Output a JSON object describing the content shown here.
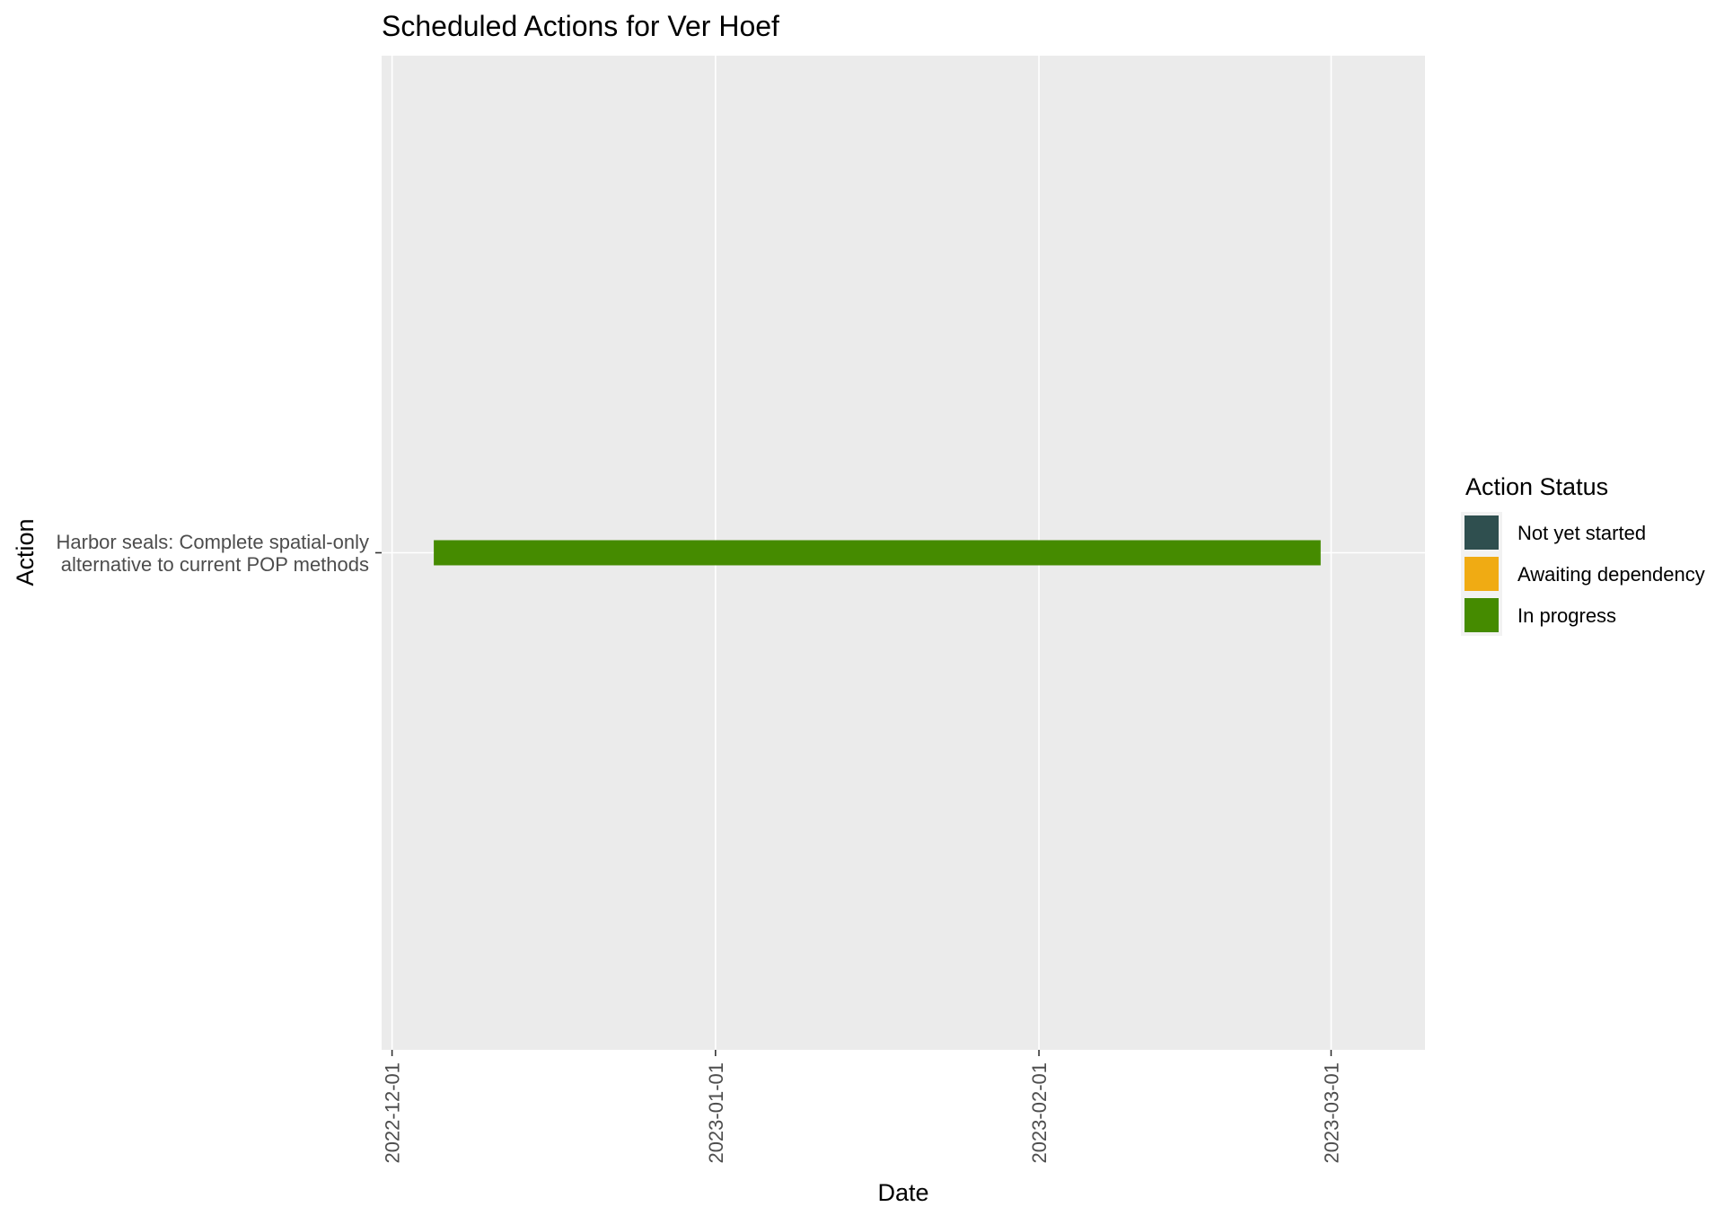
{
  "chart_data": {
    "type": "bar",
    "orientation": "horizontal",
    "title": "Scheduled Actions for Ver Hoef",
    "xlabel": "Date",
    "ylabel": "Action",
    "x_axis_type": "date",
    "xlim": [
      "2022-11-30",
      "2023-03-10"
    ],
    "x_ticks": [
      "2022-12-01",
      "2023-01-01",
      "2023-02-01",
      "2023-03-01"
    ],
    "categories": [
      [
        "Harbor seals: Complete spatial-only",
        "alternative to current POP methods"
      ]
    ],
    "bars": [
      {
        "category_index": 0,
        "start": "2022-12-05",
        "end": "2023-02-28",
        "status": "In progress"
      }
    ],
    "grid": true,
    "legend": {
      "title": "Action Status",
      "position": "right",
      "items": [
        {
          "label": "Not yet started",
          "color": "#2f4f4f"
        },
        {
          "label": "Awaiting dependency",
          "color": "#f0ab13"
        },
        {
          "label": "In progress",
          "color": "#458b00"
        }
      ]
    },
    "colors": {
      "panel_background": "#ebebeb",
      "grid_line": "#ffffff",
      "tick_mark": "#333333"
    }
  }
}
